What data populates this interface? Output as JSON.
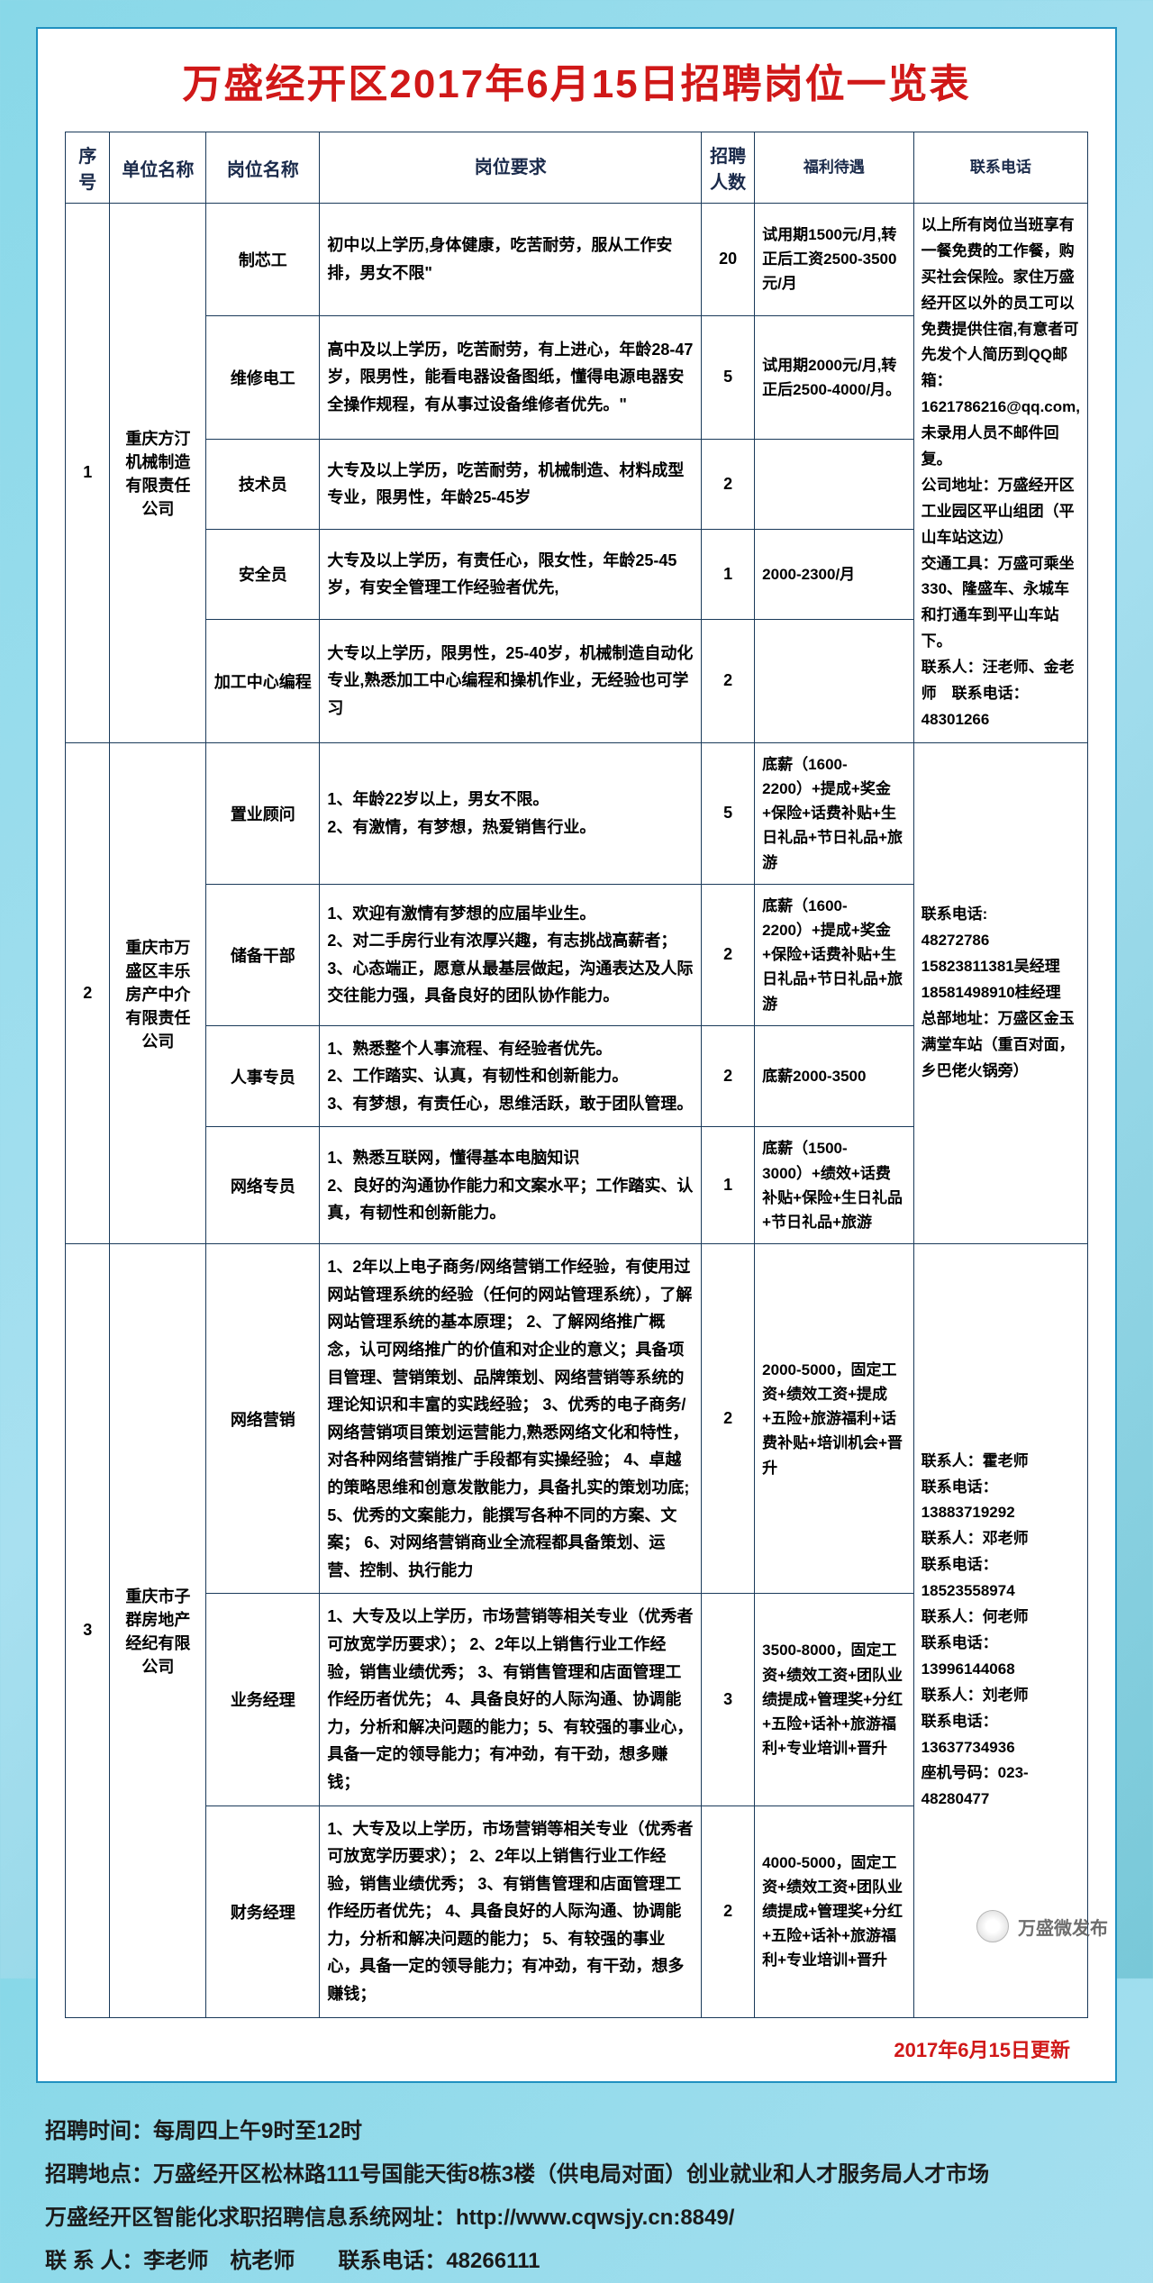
{
  "title": "万盛经开区2017年6月15日招聘岗位一览表",
  "headers": {
    "idx": "序号",
    "company": "单位名称",
    "position": "岗位名称",
    "requirement": "岗位要求",
    "count": "招聘人数",
    "benefit": "福利待遇",
    "contact": "联系电话"
  },
  "groups": [
    {
      "idx": "1",
      "company": "重庆方汀机械制造有限责任公司",
      "contact": "以上所有岗位当班享有一餐免费的工作餐，购买社会保险。家住万盛经开区以外的员工可以免费提供住宿,有意者可先发个人简历到QQ邮箱：1621786216@qq.com,未录用人员不邮件回复。\n公司地址：万盛经开区工业园区平山组团（平山车站这边）\n交通工具：万盛可乘坐330、隆盛车、永城车和打通车到平山车站下。\n联系人：汪老师、金老师 联系电话：48301266",
      "rows": [
        {
          "position": "制芯工",
          "requirement": "初中以上学历,身体健康，吃苦耐劳，服从工作安排，男女不限\"",
          "count": "20",
          "benefit": "试用期1500元/月,转正后工资2500-3500元/月"
        },
        {
          "position": "维修电工",
          "requirement": "高中及以上学历，吃苦耐劳，有上进心，年龄28-47岁，限男性，能看电器设备图纸，懂得电源电器安全操作规程，有从事过设备维修者优先。\"",
          "count": "5",
          "benefit": "试用期2000元/月,转正后2500-4000/月。"
        },
        {
          "position": "技术员",
          "requirement": "大专及以上学历，吃苦耐劳，机械制造、材料成型专业，限男性，年龄25-45岁",
          "count": "2",
          "benefit": ""
        },
        {
          "position": "安全员",
          "requirement": "大专及以上学历，有责任心，限女性，年龄25-45岁，有安全管理工作经验者优先,",
          "count": "1",
          "benefit": "2000-2300/月"
        },
        {
          "position": "加工中心编程",
          "requirement": "大专以上学历，限男性，25-40岁，机械制造自动化专业,熟悉加工中心编程和操机作业，无经验也可学习",
          "count": "2",
          "benefit": ""
        }
      ]
    },
    {
      "idx": "2",
      "company": "重庆市万盛区丰乐房产中介有限责任公司",
      "contact": "联系电话:\n48272786\n15823811381吴经理\n18581498910桂经理\n总部地址：万盛区金玉满堂车站（重百对面，乡巴佬火锅旁）",
      "rows": [
        {
          "position": "置业顾问",
          "requirement": "1、年龄22岁以上，男女不限。\n2、有激情，有梦想，热爱销售行业。",
          "count": "5",
          "benefit": "底薪（1600-2200）+提成+奖金+保险+话费补贴+生日礼品+节日礼品+旅游"
        },
        {
          "position": "储备干部",
          "requirement": "1、欢迎有激情有梦想的应届毕业生。\n2、对二手房行业有浓厚兴趣，有志挑战高薪者；\n3、心态端正，愿意从最基层做起，沟通表达及人际交往能力强，具备良好的团队协作能力。",
          "count": "2",
          "benefit": "底薪（1600-2200）+提成+奖金+保险+话费补贴+生日礼品+节日礼品+旅游"
        },
        {
          "position": "人事专员",
          "requirement": "1、熟悉整个人事流程、有经验者优先。\n2、工作踏实、认真，有韧性和创新能力。\n3、有梦想，有责任心，思维活跃，敢于团队管理。",
          "count": "2",
          "benefit": "底薪2000-3500"
        },
        {
          "position": "网络专员",
          "requirement": "1、熟悉互联网，懂得基本电脑知识\n2、良好的沟通协作能力和文案水平；工作踏实、认真，有韧性和创新能力。",
          "count": "1",
          "benefit": "底薪（1500-3000）+绩效+话费补贴+保险+生日礼品+节日礼品+旅游"
        }
      ]
    },
    {
      "idx": "3",
      "company": "重庆市子群房地产经纪有限公司",
      "contact": "联系人：霍老师\n联系电话：13883719292\n联系人：邓老师\n联系电话：18523558974\n联系人：何老师\n联系电话：13996144068\n联系人：刘老师\n联系电话：13637734936\n座机号码：023-48280477",
      "rows": [
        {
          "position": "网络营销",
          "requirement": "1、2年以上电子商务/网络营销工作经验，有使用过网站管理系统的经验（任何的网站管理系统），了解网站管理系统的基本原理；  2、了解网络推广概念，认可网络推广的价值和对企业的意义；具备项目管理、营销策划、品牌策划、网络营销等系统的理论知识和丰富的实践经验；  3、优秀的电子商务/网络营销项目策划运营能力,熟悉网络文化和特性，对各种网络营销推广手段都有实操经验；  4、卓越的策略思维和创意发散能力，具备扎实的策划功底; 5、优秀的文案能力，能撰写各种不同的方案、文案；  6、对网络营销商业全流程都具备策划、运营、控制、执行能力",
          "count": "2",
          "benefit": "2000-5000，固定工资+绩效工资+提成+五险+旅游福利+话费补贴+培训机会+晋升"
        },
        {
          "position": "业务经理",
          "requirement": "1、大专及以上学历，市场营销等相关专业（优秀者可放宽学历要求）；  2、2年以上销售行业工作经验，销售业绩优秀；  3、有销售管理和店面管理工作经历者优先；  4、具备良好的人际沟通、协调能力，分析和解决问题的能力；5、有较强的事业心，具备一定的领导能力；有冲劲，有干劲，想多赚钱；",
          "count": "3",
          "benefit": "3500-8000，固定工资+绩效工资+团队业绩提成+管理奖+分红+五险+话补+旅游福利+专业培训+晋升"
        },
        {
          "position": "财务经理",
          "requirement": "1、大专及以上学历，市场营销等相关专业（优秀者可放宽学历要求）；  2、2年以上销售行业工作经验，销售业绩优秀；  3、有销售管理和店面管理工作经历者优先；  4、具备良好的人际沟通、协调能力，分析和解决问题的能力；  5、有较强的事业心，具备一定的领导能力；有冲劲，有干劲，想多赚钱；",
          "count": "2",
          "benefit": "4000-5000，固定工资+绩效工资+团队业绩提成+管理奖+分红+五险+话补+旅游福利+专业培训+晋升"
        }
      ]
    }
  ],
  "update_note": "2017年6月15日更新",
  "footer": {
    "line1": "招聘时间：每周四上午9时至12时",
    "line2": "招聘地点：万盛经开区松林路111号国能天街8栋3楼（供电局对面）创业就业和人才服务局人才市场",
    "line3": "万盛经开区智能化求职招聘信息系统网址：http://www.cqwsjy.cn:8849/",
    "line4": "联 系 人：李老师 杭老师  联系电话：48266111"
  },
  "watermark": "万盛微发布"
}
